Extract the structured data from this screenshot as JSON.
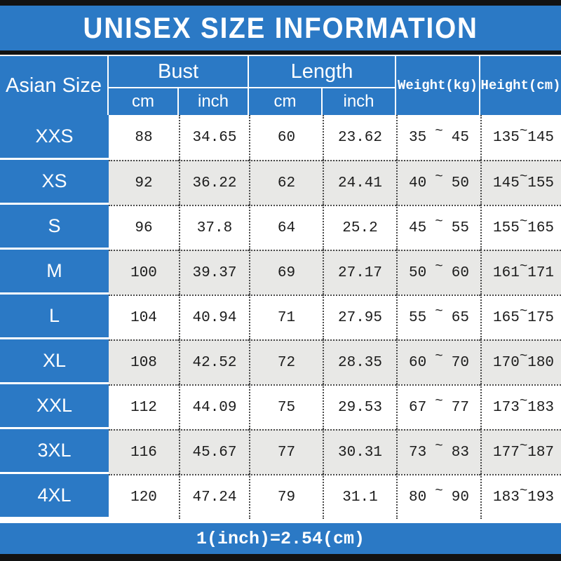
{
  "title": "UNISEX SIZE INFORMATION",
  "footer_note": "1(inch)=2.54(cm)",
  "table": {
    "header": {
      "size_column": "Asian Size",
      "bust": "Bust",
      "length": "Length",
      "weight": "Weight(kg)",
      "height": "Height(cm)",
      "unit_cm": "cm",
      "unit_inch": "inch"
    },
    "range_separator": "~",
    "rows": [
      {
        "size": "XXS",
        "bust_cm": "88",
        "bust_inch": "34.65",
        "length_cm": "60",
        "length_inch": "23.62",
        "weight_min": "35",
        "weight_max": "45",
        "height_min": "135",
        "height_max": "145"
      },
      {
        "size": "XS",
        "bust_cm": "92",
        "bust_inch": "36.22",
        "length_cm": "62",
        "length_inch": "24.41",
        "weight_min": "40",
        "weight_max": "50",
        "height_min": "145",
        "height_max": "155"
      },
      {
        "size": "S",
        "bust_cm": "96",
        "bust_inch": "37.8",
        "length_cm": "64",
        "length_inch": "25.2",
        "weight_min": "45",
        "weight_max": "55",
        "height_min": "155",
        "height_max": "165"
      },
      {
        "size": "M",
        "bust_cm": "100",
        "bust_inch": "39.37",
        "length_cm": "69",
        "length_inch": "27.17",
        "weight_min": "50",
        "weight_max": "60",
        "height_min": "161",
        "height_max": "171"
      },
      {
        "size": "L",
        "bust_cm": "104",
        "bust_inch": "40.94",
        "length_cm": "71",
        "length_inch": "27.95",
        "weight_min": "55",
        "weight_max": "65",
        "height_min": "165",
        "height_max": "175"
      },
      {
        "size": "XL",
        "bust_cm": "108",
        "bust_inch": "42.52",
        "length_cm": "72",
        "length_inch": "28.35",
        "weight_min": "60",
        "weight_max": "70",
        "height_min": "170",
        "height_max": "180"
      },
      {
        "size": "XXL",
        "bust_cm": "112",
        "bust_inch": "44.09",
        "length_cm": "75",
        "length_inch": "29.53",
        "weight_min": "67",
        "weight_max": "77",
        "height_min": "173",
        "height_max": "183"
      },
      {
        "size": "3XL",
        "bust_cm": "116",
        "bust_inch": "45.67",
        "length_cm": "77",
        "length_inch": "30.31",
        "weight_min": "73",
        "weight_max": "83",
        "height_min": "177",
        "height_max": "187"
      },
      {
        "size": "4XL",
        "bust_cm": "120",
        "bust_inch": "47.24",
        "length_cm": "79",
        "length_inch": "31.1",
        "weight_min": "80",
        "weight_max": "90",
        "height_min": "183",
        "height_max": "193"
      }
    ]
  },
  "colors": {
    "blue": "#2b79c5",
    "alt_row": "#e8e8e6",
    "text_dark": "#1c1c1c",
    "bar_black": "#121212"
  },
  "chart_data": {
    "type": "table",
    "title": "UNISEX SIZE INFORMATION",
    "columns": [
      "Asian Size",
      "Bust cm",
      "Bust inch",
      "Length cm",
      "Length inch",
      "Weight(kg)",
      "Height(cm)"
    ],
    "rows": [
      [
        "XXS",
        88,
        34.65,
        60,
        23.62,
        "35~45",
        "135~145"
      ],
      [
        "XS",
        92,
        36.22,
        62,
        24.41,
        "40~50",
        "145~155"
      ],
      [
        "S",
        96,
        37.8,
        64,
        25.2,
        "45~55",
        "155~165"
      ],
      [
        "M",
        100,
        39.37,
        69,
        27.17,
        "50~60",
        "161~171"
      ],
      [
        "L",
        104,
        40.94,
        71,
        27.95,
        "55~65",
        "165~175"
      ],
      [
        "XL",
        108,
        42.52,
        72,
        28.35,
        "60~70",
        "170~180"
      ],
      [
        "XXL",
        112,
        44.09,
        75,
        29.53,
        "67~77",
        "173~183"
      ],
      [
        "3XL",
        116,
        45.67,
        77,
        30.31,
        "73~83",
        "177~187"
      ],
      [
        "4XL",
        120,
        47.24,
        79,
        31.1,
        "80~90",
        "183~193"
      ]
    ],
    "note": "1(inch)=2.54(cm)",
    "layout": {
      "alternating_row_shading": true,
      "grouped_headers": {
        "Bust": [
          "cm",
          "inch"
        ],
        "Length": [
          "cm",
          "inch"
        ]
      }
    }
  }
}
